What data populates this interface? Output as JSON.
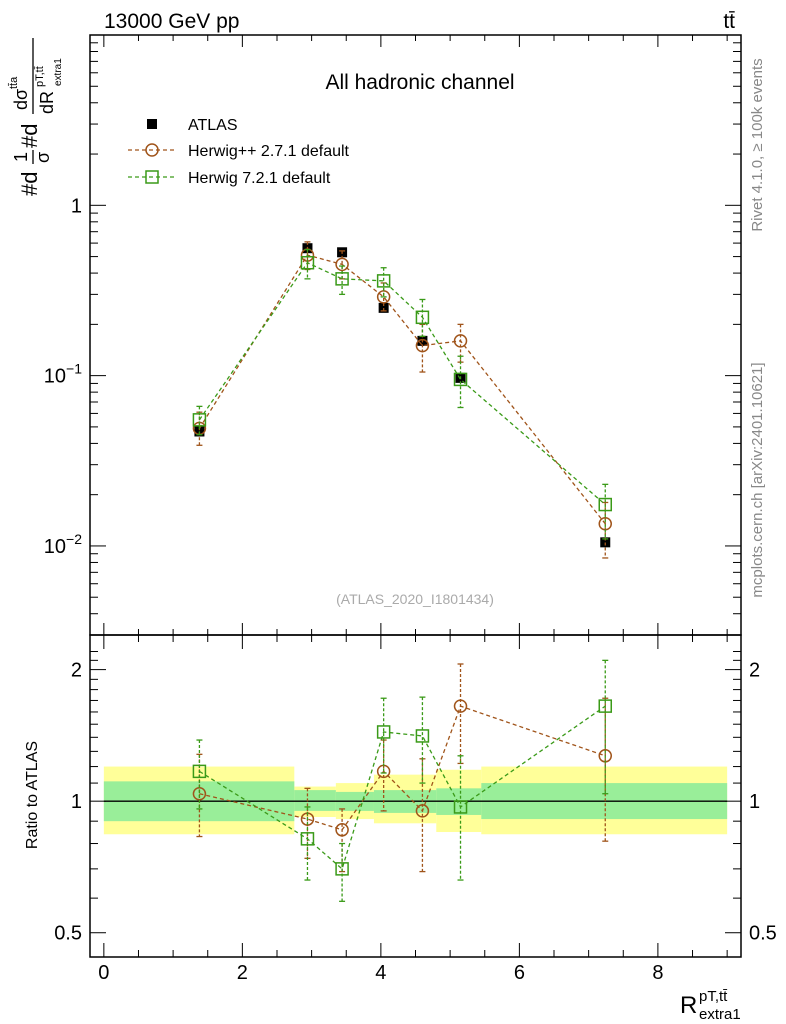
{
  "header": {
    "energy_label": "13000 GeV pp",
    "process_label": "tt̄"
  },
  "chart_data": [
    {
      "type": "scatter",
      "title": "All hadronic channel",
      "ylabel": "#d¹⁄σ #d dσᵗᵗᵃ / dR^{pT,tt̄}_{extra1}",
      "ylabel_parts": {
        "prefix": "#d",
        "frac1_num": "1",
        "frac1_den": "σ",
        "mid": "#d",
        "frac2_num": "dσ",
        "frac2_num_sup": "tt̄a",
        "frac2_den": "dR",
        "frac2_den_sup": "pT,tt̄",
        "frac2_den_sub": "extra1"
      },
      "yscale": "log",
      "ylim": [
        0.003,
        10
      ],
      "xlim": [
        -0.2,
        9.2
      ],
      "y_ticks": [
        {
          "value": 0.01,
          "base": "10",
          "exp": "−2"
        },
        {
          "value": 0.1,
          "base": "10",
          "exp": "−1"
        },
        {
          "value": 1,
          "base": "1",
          "exp": ""
        }
      ],
      "legend_position": "top-left",
      "watermark": "(ATLAS_2020_I1801434)",
      "series": [
        {
          "name": "ATLAS",
          "marker": "filled-square",
          "color": "#000000",
          "x": [
            1.38,
            2.94,
            3.44,
            4.04,
            4.6,
            5.15,
            7.24
          ],
          "y": [
            0.047,
            0.56,
            0.53,
            0.25,
            0.16,
            0.097,
            0.0105
          ]
        },
        {
          "name": "Herwig++ 2.7.1 default",
          "marker": "open-circle",
          "color": "#a0541a",
          "x": [
            1.38,
            2.94,
            3.44,
            4.04,
            4.6,
            5.15,
            7.24
          ],
          "y": [
            0.049,
            0.51,
            0.45,
            0.29,
            0.15,
            0.16,
            0.0135
          ],
          "yerr_low": [
            0.039,
            0.42,
            0.37,
            0.24,
            0.105,
            0.12,
            0.0085
          ],
          "yerr_high": [
            0.061,
            0.61,
            0.54,
            0.35,
            0.2,
            0.2,
            0.018
          ]
        },
        {
          "name": "Herwig 7.2.1 default",
          "marker": "open-square",
          "color": "#3a9a18",
          "x": [
            1.38,
            2.94,
            3.44,
            4.04,
            4.6,
            5.15,
            7.24
          ],
          "y": [
            0.055,
            0.46,
            0.37,
            0.36,
            0.22,
            0.095,
            0.0175
          ],
          "yerr_low": [
            0.045,
            0.37,
            0.3,
            0.29,
            0.17,
            0.065,
            0.011
          ],
          "yerr_high": [
            0.066,
            0.55,
            0.44,
            0.43,
            0.28,
            0.13,
            0.023
          ]
        }
      ]
    },
    {
      "type": "scatter",
      "ylabel": "Ratio to ATLAS",
      "yscale": "log",
      "ylim": [
        0.44,
        2.4
      ],
      "xlabel": "R",
      "xlabel_sup": "pT,tt̄",
      "xlabel_sub": "extra1",
      "x_ticks": [
        0,
        2,
        4,
        6,
        8
      ],
      "y_ticks": [
        0.5,
        1,
        2
      ],
      "reference_line": 1,
      "bands": {
        "edges": [
          0,
          2.75,
          3.35,
          3.9,
          4.8,
          5.45,
          9.0
        ],
        "inner_low": [
          0.9,
          0.95,
          0.95,
          0.94,
          0.93,
          0.91
        ],
        "inner_high": [
          1.11,
          1.06,
          1.05,
          1.06,
          1.07,
          1.1
        ],
        "outer_low": [
          0.84,
          0.92,
          0.91,
          0.89,
          0.85,
          0.84
        ],
        "outer_high": [
          1.2,
          1.08,
          1.1,
          1.15,
          1.18,
          1.2
        ],
        "inner_color": "#99ee99",
        "outer_color": "#ffff99"
      },
      "series": [
        {
          "name": "Herwig++ 2.7.1 default",
          "marker": "open-circle",
          "color": "#a0541a",
          "x": [
            1.38,
            2.94,
            3.44,
            4.04,
            4.6,
            5.15,
            7.24
          ],
          "y": [
            1.04,
            0.91,
            0.86,
            1.17,
            0.95,
            1.65,
            1.27
          ],
          "yerr_low": [
            0.83,
            0.74,
            0.69,
            0.95,
            0.69,
            1.22,
            0.81
          ],
          "yerr_high": [
            1.28,
            1.07,
            0.96,
            1.38,
            1.25,
            2.06,
            1.72
          ]
        },
        {
          "name": "Herwig 7.2.1 default",
          "marker": "open-square",
          "color": "#3a9a18",
          "x": [
            1.38,
            2.94,
            3.44,
            4.04,
            4.6,
            5.15,
            7.24
          ],
          "y": [
            1.17,
            0.82,
            0.7,
            1.44,
            1.41,
            0.97,
            1.65
          ],
          "yerr_low": [
            0.96,
            0.66,
            0.59,
            1.16,
            1.1,
            0.66,
            1.04
          ],
          "yerr_high": [
            1.38,
            0.97,
            0.8,
            1.72,
            1.73,
            1.27,
            2.1
          ]
        }
      ]
    }
  ],
  "side_labels": {
    "rivet_info": "Rivet 4.1.0, ≥ 100k events",
    "source_info": "mcplots.cern.ch [arXiv:2401.10621]"
  }
}
